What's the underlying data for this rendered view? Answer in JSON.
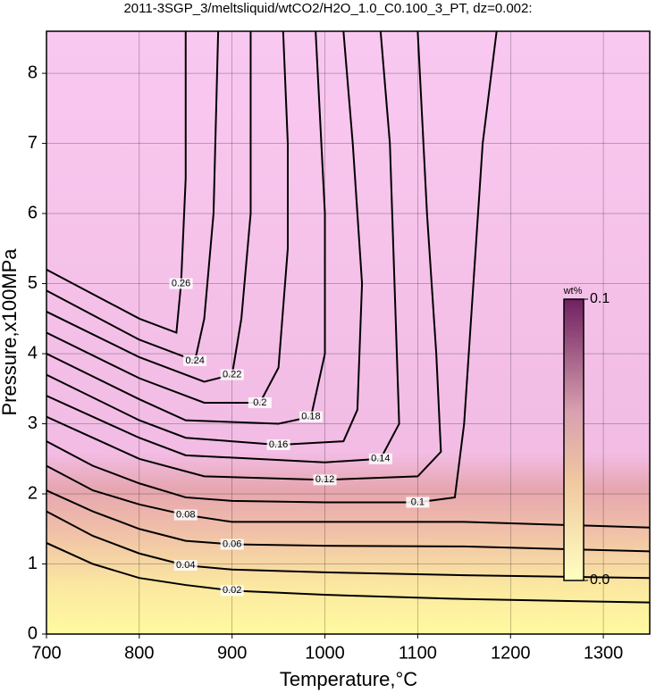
{
  "chart_data": {
    "type": "contour",
    "title": "2011-3SGP_3/meltsliquid/wtCO2/H2O_1.0_C0.100_3_PT, dz=0.002:",
    "xlabel": "Temperature,°C",
    "ylabel": "Pressure,x100MPa",
    "xlim": [
      700,
      1350
    ],
    "ylim": [
      0,
      8.6
    ],
    "xticks": [
      700,
      800,
      900,
      1000,
      1100,
      1200,
      1300
    ],
    "yticks": [
      0,
      1,
      2,
      3,
      4,
      5,
      6,
      7,
      8
    ],
    "grid": true,
    "line_color": "#000000",
    "contours": [
      {
        "level": 0.02,
        "x": [
          700,
          750,
          800,
          850,
          900,
          1000,
          1150,
          1350
        ],
        "y": [
          1.3,
          1.0,
          0.8,
          0.7,
          0.62,
          0.56,
          0.5,
          0.45
        ]
      },
      {
        "level": 0.04,
        "x": [
          700,
          750,
          800,
          850,
          900,
          1000,
          1150,
          1350
        ],
        "y": [
          1.75,
          1.4,
          1.15,
          0.98,
          0.92,
          0.88,
          0.84,
          0.8
        ]
      },
      {
        "level": 0.06,
        "x": [
          700,
          750,
          800,
          850,
          900,
          1000,
          1150,
          1350
        ],
        "y": [
          2.05,
          1.75,
          1.5,
          1.33,
          1.28,
          1.26,
          1.25,
          1.18
        ]
      },
      {
        "level": 0.08,
        "x": [
          700,
          750,
          800,
          850,
          900,
          1000,
          1150,
          1350
        ],
        "y": [
          2.4,
          2.05,
          1.85,
          1.7,
          1.6,
          1.6,
          1.6,
          1.52
        ]
      },
      {
        "level": 0.1,
        "x": [
          700,
          750,
          800,
          850,
          900,
          1000,
          1100,
          1140,
          1150,
          1160,
          1170,
          1185
        ],
        "y": [
          2.75,
          2.4,
          2.15,
          1.95,
          1.9,
          1.88,
          1.88,
          1.95,
          3,
          5,
          7,
          8.6
        ]
      },
      {
        "level": 0.12,
        "x": [
          700,
          800,
          870,
          1000,
          1100,
          1125,
          1120,
          1110,
          1100
        ],
        "y": [
          3.1,
          2.5,
          2.25,
          2.2,
          2.25,
          2.6,
          4,
          6,
          8.6
        ]
      },
      {
        "level": 0.14,
        "x": [
          700,
          800,
          850,
          1000,
          1060,
          1080,
          1075,
          1070,
          1060
        ],
        "y": [
          3.4,
          2.8,
          2.55,
          2.45,
          2.5,
          3,
          5,
          7,
          8.6
        ]
      },
      {
        "level": 0.16,
        "x": [
          700,
          800,
          850,
          950,
          1020,
          1035,
          1040,
          1030,
          1020
        ],
        "y": [
          3.7,
          3.05,
          2.8,
          2.7,
          2.75,
          3.2,
          5,
          7,
          8.6
        ]
      },
      {
        "level": 0.18,
        "x": [
          700,
          800,
          850,
          950,
          985,
          1000,
          1000,
          990
        ],
        "y": [
          4.0,
          3.35,
          3.05,
          3.0,
          3.1,
          4,
          6,
          8.6
        ]
      },
      {
        "level": 0.2,
        "x": [
          700,
          800,
          870,
          930,
          950,
          960,
          960,
          955
        ],
        "y": [
          4.3,
          3.65,
          3.3,
          3.3,
          3.8,
          5.5,
          7,
          8.6
        ]
      },
      {
        "level": 0.22,
        "x": [
          700,
          800,
          870,
          900,
          910,
          920,
          920
        ],
        "y": [
          4.6,
          3.95,
          3.6,
          3.7,
          4.5,
          6,
          8.6
        ]
      },
      {
        "level": 0.24,
        "x": [
          700,
          800,
          860,
          870,
          880,
          885
        ],
        "y": [
          4.9,
          4.2,
          3.9,
          4.5,
          6,
          8.6
        ]
      },
      {
        "level": 0.26,
        "x": [
          700,
          800,
          840,
          845,
          850,
          850
        ],
        "y": [
          5.2,
          4.5,
          4.3,
          5,
          6.5,
          8.6
        ]
      }
    ],
    "colorbar": {
      "label": "wt%",
      "lim": [
        0,
        0.1
      ],
      "ticks": [
        {
          "value": 0,
          "label": "0.0"
        },
        0.1
      ]
    }
  }
}
